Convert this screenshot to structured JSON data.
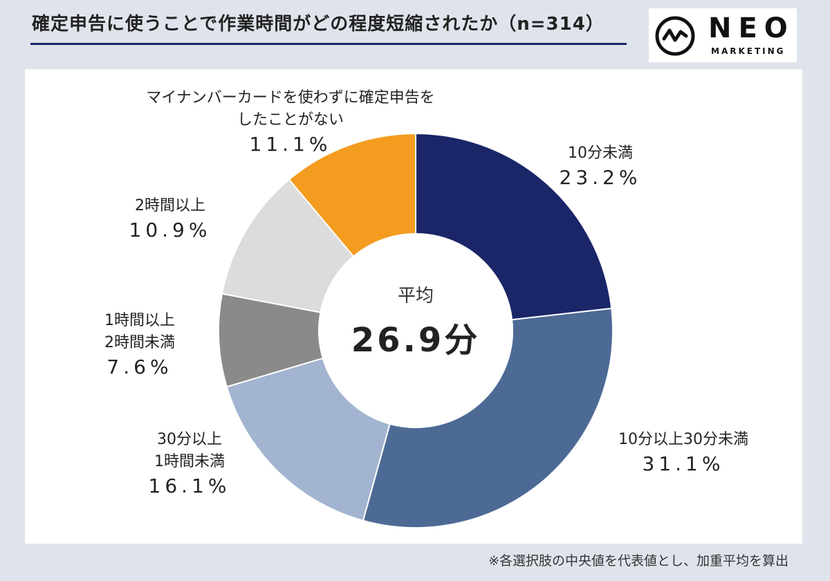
{
  "header": {
    "title": "確定申告に使うことで作業時間がどの程度短縮されたか（n=314）"
  },
  "logo": {
    "word": "NEO",
    "sub": "MARKETING"
  },
  "footnote": "※各選択肢の中央値を代表値とし、加重平均を算出",
  "chart_data": {
    "type": "pie",
    "variant": "donut",
    "n": 314,
    "center_label": "平均",
    "center_value": "26.9分",
    "start": "12 o'clock",
    "direction": "clockwise",
    "slices": [
      {
        "label_lines": [
          "10分未満"
        ],
        "percent_text": "23.2%",
        "value": 23.2,
        "color": "#1b2668"
      },
      {
        "label_lines": [
          "10分以上30分未満"
        ],
        "percent_text": "31.1%",
        "value": 31.1,
        "color": "#4d6a95"
      },
      {
        "label_lines": [
          "30分以上",
          "1時間未満"
        ],
        "percent_text": "16.1%",
        "value": 16.1,
        "color": "#a2b4cf"
      },
      {
        "label_lines": [
          "1時間以上",
          "2時間未満"
        ],
        "percent_text": "7.6%",
        "value": 7.6,
        "color": "#8a8a8a"
      },
      {
        "label_lines": [
          "2時間以上"
        ],
        "percent_text": "10.9%",
        "value": 10.9,
        "color": "#dcdcdc"
      },
      {
        "label_lines": [
          "マイナンバーカードを使わずに確定申告を",
          "したことがない"
        ],
        "percent_text": "11.1%",
        "value": 11.1,
        "color": "#f39c1f"
      }
    ]
  }
}
